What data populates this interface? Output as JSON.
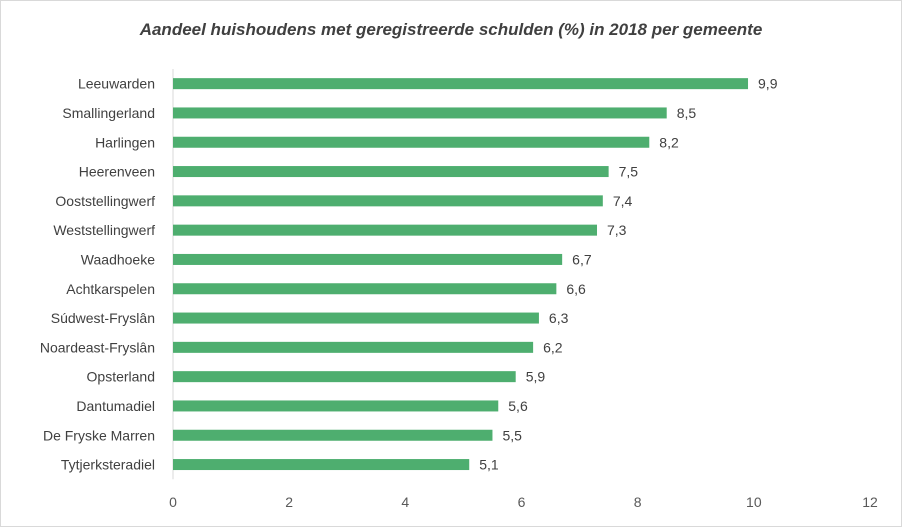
{
  "chart_data": {
    "type": "bar",
    "orientation": "horizontal",
    "title": "Aandeel huishoudens met geregistreerde  schulden (%) in 2018 per gemeente",
    "xlabel": "",
    "ylabel": "",
    "xlim": [
      0,
      12
    ],
    "x_ticks": [
      "0",
      "2",
      "4",
      "6",
      "8",
      "10",
      "12"
    ],
    "x_tick_values": [
      0,
      2,
      4,
      6,
      8,
      10,
      12
    ],
    "grid": false,
    "legend": "none",
    "bar_color": "#4eae6f",
    "categories": [
      "Leeuwarden",
      "Smallingerland",
      "Harlingen",
      "Heerenveen",
      "Ooststellingwerf",
      "Weststellingwerf",
      "Waadhoeke",
      "Achtkarspelen",
      "Súdwest-Fryslân",
      "Noardeast-Fryslân",
      "Opsterland",
      "Dantumadiel",
      "De Fryske Marren",
      "Tytjerksteradiel"
    ],
    "values": [
      9.9,
      8.5,
      8.2,
      7.5,
      7.4,
      7.3,
      6.7,
      6.6,
      6.3,
      6.2,
      5.9,
      5.6,
      5.5,
      5.1
    ],
    "value_labels": [
      "9,9",
      "8,5",
      "8,2",
      "7,5",
      "7,4",
      "7,3",
      "6,7",
      "6,6",
      "6,3",
      "6,2",
      "5,9",
      "5,6",
      "5,5",
      "5,1"
    ]
  }
}
